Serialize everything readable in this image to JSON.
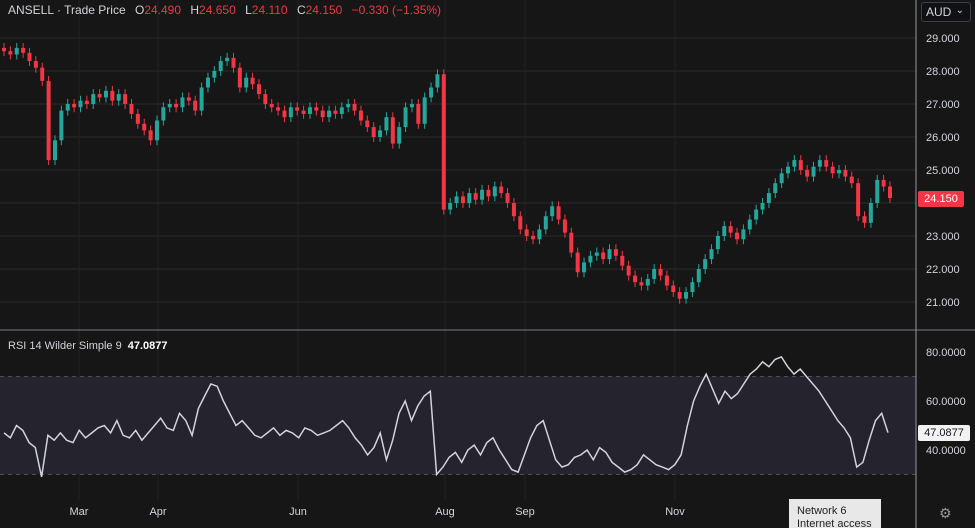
{
  "legend": {
    "symbol": "ANSELL",
    "separator": "·",
    "source": "Trade Price",
    "o_label": "O",
    "o_value": "24.490",
    "h_label": "H",
    "h_value": "24.650",
    "l_label": "L",
    "l_value": "24.110",
    "c_label": "C",
    "c_value": "24.150",
    "change": "−0.330 (−1.35%)"
  },
  "currency": "AUD",
  "rsi_legend": {
    "label": "RSI 14 Wilder Simple 9",
    "value": "47.0877"
  },
  "price_badge": "24.150",
  "rsi_badge": "47.0877",
  "tooltip": {
    "line1": "Network 6",
    "line2": "Internet access"
  },
  "colors": {
    "up": "#26a69a",
    "down": "#f23645",
    "rsi_line": "#d1d4dc",
    "bg": "#161616",
    "rsi_band": "#24232e"
  },
  "chart_data": [
    {
      "type": "candlestick",
      "title": "",
      "ylim": [
        20.5,
        29.3
      ],
      "y_ticks": [
        "29.000",
        "28.000",
        "27.000",
        "26.000",
        "25.000",
        "24.000",
        "23.000",
        "22.000",
        "21.000"
      ],
      "x_ticks": [
        "Mar",
        "Apr",
        "Jun",
        "Aug",
        "Sep",
        "Nov"
      ],
      "close_series": [
        28.6,
        28.5,
        28.7,
        28.55,
        28.3,
        28.1,
        27.7,
        25.3,
        25.9,
        26.8,
        27.0,
        26.9,
        27.1,
        27.0,
        27.3,
        27.2,
        27.4,
        27.1,
        27.3,
        27.0,
        26.7,
        26.4,
        26.2,
        25.9,
        26.5,
        26.9,
        27.0,
        26.9,
        27.2,
        27.1,
        26.8,
        27.5,
        27.8,
        28.0,
        28.3,
        28.4,
        28.1,
        27.5,
        27.8,
        27.6,
        27.3,
        27.0,
        26.9,
        26.8,
        26.6,
        26.9,
        26.8,
        26.7,
        26.9,
        26.8,
        26.6,
        26.8,
        26.7,
        26.9,
        27.0,
        26.8,
        26.5,
        26.3,
        26.0,
        26.2,
        26.6,
        25.8,
        26.3,
        26.9,
        27.0,
        26.4,
        27.2,
        27.5,
        27.9,
        23.8,
        24.0,
        24.2,
        24.0,
        24.3,
        24.1,
        24.4,
        24.2,
        24.5,
        24.3,
        24.0,
        23.6,
        23.2,
        23.0,
        22.9,
        23.2,
        23.6,
        23.9,
        23.5,
        23.1,
        22.5,
        21.9,
        22.2,
        22.4,
        22.5,
        22.3,
        22.6,
        22.4,
        22.1,
        21.8,
        21.6,
        21.5,
        21.7,
        22.0,
        21.8,
        21.5,
        21.3,
        21.1,
        21.3,
        21.6,
        22.0,
        22.3,
        22.6,
        23.0,
        23.3,
        23.1,
        22.9,
        23.2,
        23.5,
        23.8,
        24.0,
        24.3,
        24.6,
        24.9,
        25.1,
        25.3,
        25.0,
        24.8,
        25.1,
        25.3,
        25.1,
        24.9,
        25.0,
        24.8,
        24.6,
        23.6,
        23.4,
        24.0,
        24.7,
        24.5,
        24.15
      ]
    },
    {
      "type": "line",
      "title": "",
      "ylim": [
        25,
        85
      ],
      "y_ticks": [
        "80.0000",
        "60.0000",
        "40.0000"
      ],
      "band": [
        30,
        70
      ],
      "series": [
        {
          "values": [
            47,
            45,
            50,
            48,
            43,
            41,
            29,
            46,
            44,
            47,
            44,
            43,
            48,
            45,
            47,
            49,
            50,
            47,
            52,
            46,
            45,
            48,
            44,
            47,
            50,
            53,
            49,
            48,
            55,
            52,
            46,
            57,
            62,
            67,
            66,
            60,
            55,
            50,
            52,
            49,
            46,
            45,
            47,
            49,
            46,
            48,
            47,
            45,
            49,
            48,
            46,
            47,
            48,
            50,
            52,
            49,
            45,
            42,
            38,
            41,
            47,
            36,
            44,
            55,
            60,
            52,
            58,
            62,
            64,
            30,
            33,
            37,
            39,
            35,
            40,
            42,
            38,
            43,
            45,
            40,
            36,
            32,
            31,
            38,
            45,
            50,
            52,
            44,
            36,
            33,
            34,
            37,
            38,
            40,
            36,
            41,
            39,
            35,
            33,
            31,
            32,
            34,
            38,
            36,
            34,
            33,
            32,
            34,
            38,
            50,
            60,
            66,
            71,
            65,
            59,
            64,
            61,
            63,
            67,
            71,
            73,
            76,
            74,
            77,
            78,
            74,
            71,
            73,
            70,
            67,
            64,
            60,
            56,
            52,
            49,
            45,
            33,
            35,
            44,
            52,
            55,
            47.0877
          ]
        }
      ]
    }
  ]
}
